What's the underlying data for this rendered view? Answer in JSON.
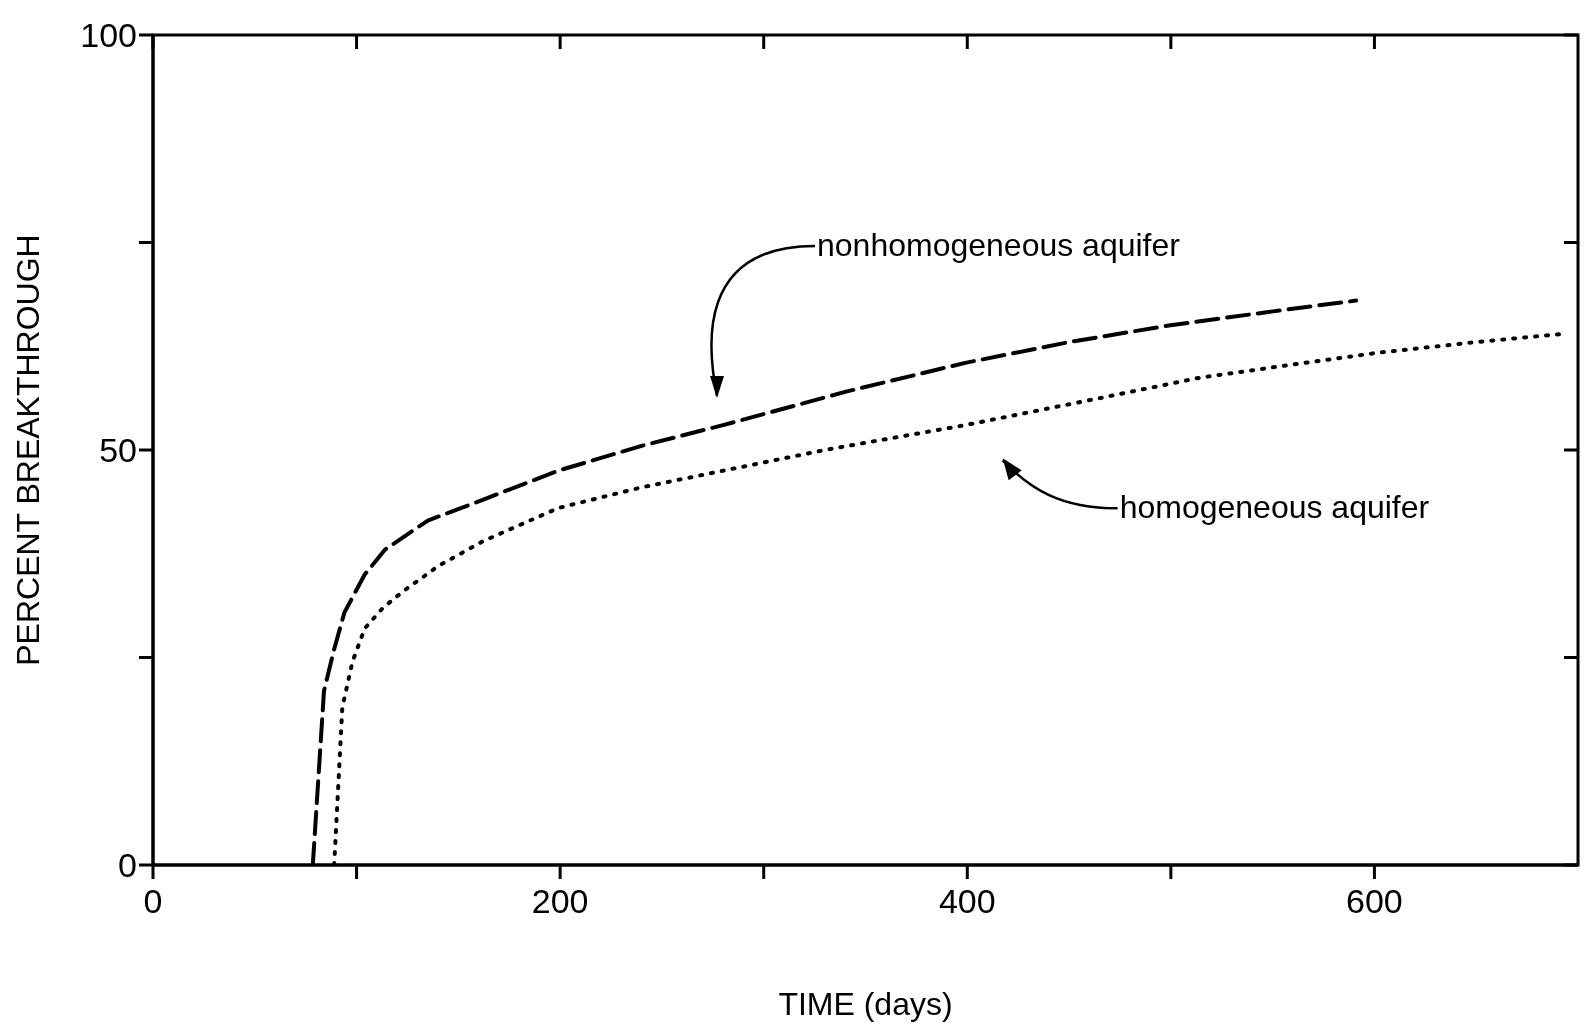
{
  "chart_data": {
    "type": "line",
    "xlabel": "TIME (days)",
    "ylabel": "PERCENT BREAKTHROUGH",
    "xlim": [
      0,
      700
    ],
    "ylim": [
      0,
      100
    ],
    "xticks": [
      0,
      {
        "value": 100,
        "label": null
      },
      200,
      {
        "value": 300,
        "label": null
      },
      400,
      {
        "value": 500,
        "label": null
      },
      600
    ],
    "yticks": [
      0,
      {
        "value": 25,
        "label": null
      },
      50,
      {
        "value": 75,
        "label": null
      },
      100
    ],
    "marker": "none",
    "series": [
      {
        "color": "#000000",
        "line_style": "dashed",
        "x": [
          78.5,
          84,
          89,
          94,
          104,
          114,
          135,
          162,
          199,
          240,
          280,
          340,
          399,
          450,
          499,
          550,
          591
        ],
        "values": [
          0,
          21,
          26,
          30.4,
          35,
          38,
          41.5,
          44,
          47.5,
          50.5,
          53,
          57,
          60.5,
          63,
          65,
          66.7,
          68
        ]
      },
      {
        "color": "#000000",
        "line_style": "dotted",
        "x": [
          89,
          93,
          98,
          104,
          113,
          123,
          140,
          162,
          199,
          240,
          270,
          330,
          399,
          460,
          514,
          560,
          601,
          650,
          693
        ],
        "values": [
          0,
          19,
          24.5,
          28.5,
          31,
          33,
          36,
          39,
          43,
          45.5,
          47,
          50,
          53,
          56,
          58.7,
          60.3,
          61.7,
          63,
          64
        ]
      }
    ],
    "annotations": [
      "nonhomogeneous aquifer",
      "homogeneous aquifer"
    ]
  }
}
